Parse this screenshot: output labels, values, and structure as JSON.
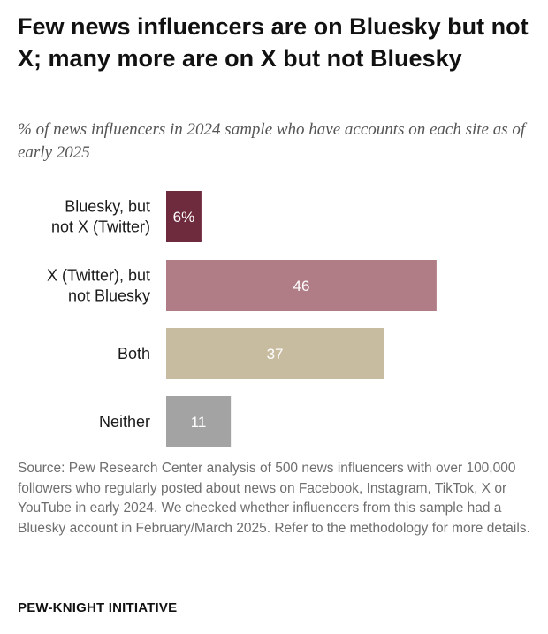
{
  "title": "Few news influencers are on Bluesky but not X; many more are on X but not Bluesky",
  "subtitle": "% of news influencers in 2024 sample who have accounts on each site as of early 2025",
  "chart_data": {
    "type": "bar",
    "orientation": "horizontal",
    "categories": [
      [
        "Bluesky, but",
        "not X (Twitter)"
      ],
      [
        "X (Twitter), but",
        "not Bluesky"
      ],
      [
        "Both"
      ],
      [
        "Neither"
      ]
    ],
    "values": [
      6,
      46,
      37,
      11
    ],
    "value_labels": [
      "6%",
      "46",
      "37",
      "11"
    ],
    "colors": [
      "#6e2b3d",
      "#b07d87",
      "#c8bca0",
      "#a3a3a3"
    ],
    "xlim": [
      0,
      54
    ],
    "grid": false
  },
  "source": "Source: Pew Research Center analysis of 500 news influencers with over 100,000 followers who regularly posted about news on Facebook, Instagram, TikTok, X or YouTube in early 2024. We checked whether influencers from this sample had a Bluesky account in February/March 2025. Refer to the methodology for more details.",
  "brand": "PEW-KNIGHT INITIATIVE"
}
